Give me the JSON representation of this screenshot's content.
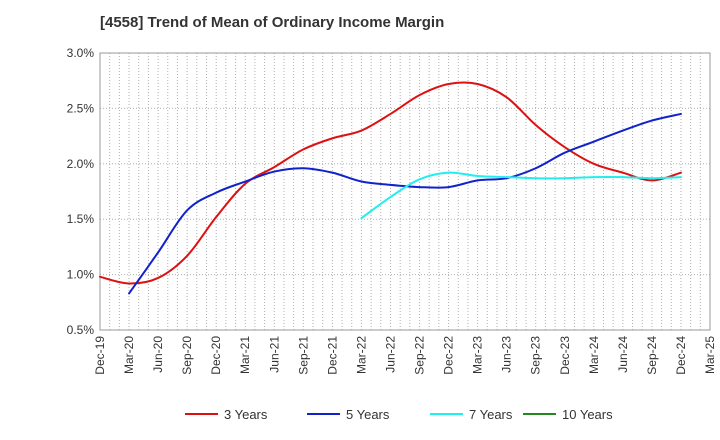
{
  "chart_data": {
    "type": "line",
    "title": "[4558]  Trend of Mean of Ordinary Income Margin",
    "xlabel": "",
    "ylabel": "",
    "x_ticks": [
      "Dec-19",
      "Mar-20",
      "Jun-20",
      "Sep-20",
      "Dec-20",
      "Mar-21",
      "Jun-21",
      "Sep-21",
      "Dec-21",
      "Mar-22",
      "Jun-22",
      "Sep-22",
      "Dec-22",
      "Mar-23",
      "Jun-23",
      "Sep-23",
      "Dec-23",
      "Mar-24",
      "Jun-24",
      "Sep-24",
      "Dec-24",
      "Mar-25"
    ],
    "y_ticks": [
      "0.5%",
      "1.0%",
      "1.5%",
      "2.0%",
      "2.5%",
      "3.0%"
    ],
    "ylim": [
      0.5,
      3.0
    ],
    "y_unit": "%",
    "grid": true,
    "legend_position": "bottom",
    "series": [
      {
        "name": "3 Years",
        "color": "#dd1111",
        "x": [
          "Dec-19",
          "Mar-20",
          "Jun-20",
          "Sep-20",
          "Dec-20",
          "Mar-21",
          "Jun-21",
          "Sep-21",
          "Dec-21",
          "Mar-22",
          "Jun-22",
          "Sep-22",
          "Dec-22",
          "Mar-23",
          "Jun-23",
          "Sep-23",
          "Dec-23",
          "Mar-24",
          "Jun-24",
          "Sep-24",
          "Dec-24"
        ],
        "values": [
          0.98,
          0.92,
          0.97,
          1.17,
          1.52,
          1.82,
          1.97,
          2.13,
          2.23,
          2.3,
          2.45,
          2.62,
          2.72,
          2.72,
          2.6,
          2.35,
          2.15,
          2.0,
          1.92,
          1.85,
          1.92
        ]
      },
      {
        "name": "5 Years",
        "color": "#1122cc",
        "x": [
          "Mar-20",
          "Jun-20",
          "Sep-20",
          "Dec-20",
          "Mar-21",
          "Jun-21",
          "Sep-21",
          "Dec-21",
          "Mar-22",
          "Jun-22",
          "Sep-22",
          "Dec-22",
          "Mar-23",
          "Jun-23",
          "Sep-23",
          "Dec-23",
          "Mar-24",
          "Jun-24",
          "Sep-24",
          "Dec-24"
        ],
        "values": [
          0.83,
          1.2,
          1.58,
          1.74,
          1.84,
          1.93,
          1.96,
          1.92,
          1.84,
          1.81,
          1.79,
          1.79,
          1.85,
          1.87,
          1.96,
          2.1,
          2.2,
          2.3,
          2.39,
          2.45
        ]
      },
      {
        "name": "7 Years",
        "color": "#22eeee",
        "x": [
          "Mar-22",
          "Jun-22",
          "Sep-22",
          "Dec-22",
          "Mar-23",
          "Jun-23",
          "Sep-23",
          "Dec-23",
          "Mar-24",
          "Jun-24",
          "Sep-24",
          "Dec-24"
        ],
        "values": [
          1.51,
          1.7,
          1.86,
          1.92,
          1.89,
          1.88,
          1.87,
          1.87,
          1.88,
          1.88,
          1.87,
          1.88
        ]
      },
      {
        "name": "10 Years",
        "color": "#228822",
        "x": [],
        "values": []
      }
    ]
  }
}
